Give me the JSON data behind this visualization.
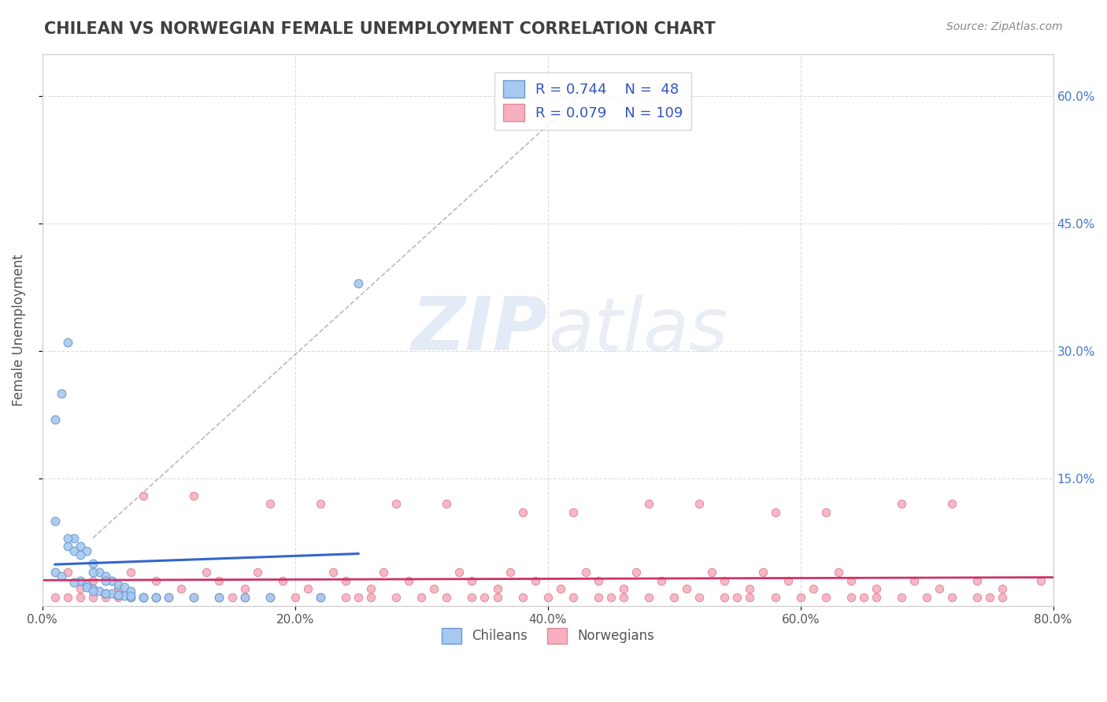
{
  "title": "CHILEAN VS NORWEGIAN FEMALE UNEMPLOYMENT CORRELATION CHART",
  "source": "Source: ZipAtlas.com",
  "ylabel": "Female Unemployment",
  "xlim": [
    0.0,
    0.8
  ],
  "ylim": [
    0.0,
    0.65
  ],
  "xtick_labels": [
    "0.0%",
    "20.0%",
    "40.0%",
    "60.0%",
    "80.0%"
  ],
  "xtick_vals": [
    0.0,
    0.2,
    0.4,
    0.6,
    0.8
  ],
  "ytick_labels": [
    "15.0%",
    "30.0%",
    "45.0%",
    "60.0%"
  ],
  "ytick_vals": [
    0.15,
    0.3,
    0.45,
    0.6
  ],
  "watermark_zip": "ZIP",
  "watermark_atlas": "atlas",
  "legend_r1": "R = 0.744",
  "legend_n1": "N =  48",
  "legend_r2": "R = 0.079",
  "legend_n2": "N = 109",
  "chile_color": "#a8c8f0",
  "chile_edge": "#6699cc",
  "norway_color": "#f8b0c0",
  "norway_edge": "#dd8899",
  "trendline_chile_color": "#3366cc",
  "trendline_norway_color": "#cc3366",
  "trendline_diag_color": "#aaaaaa",
  "background_color": "#ffffff",
  "grid_color": "#cccccc",
  "title_color": "#404040",
  "legend_text_color": "#3355bb",
  "chileans_label": "Chileans",
  "norwegians_label": "Norwegians",
  "chile_scatter_x": [
    0.01,
    0.015,
    0.02,
    0.025,
    0.03,
    0.035,
    0.04,
    0.045,
    0.05,
    0.055,
    0.06,
    0.065,
    0.07,
    0.08,
    0.09,
    0.1,
    0.12,
    0.14,
    0.16,
    0.02,
    0.025,
    0.03,
    0.035,
    0.04,
    0.045,
    0.05,
    0.055,
    0.06,
    0.065,
    0.07,
    0.01,
    0.015,
    0.025,
    0.035,
    0.04,
    0.05,
    0.06,
    0.07,
    0.08,
    0.09,
    0.01,
    0.02,
    0.03,
    0.04,
    0.05,
    0.22,
    0.18,
    0.25
  ],
  "chile_scatter_y": [
    0.22,
    0.25,
    0.07,
    0.065,
    0.03,
    0.025,
    0.02,
    0.018,
    0.015,
    0.015,
    0.013,
    0.012,
    0.01,
    0.01,
    0.01,
    0.01,
    0.01,
    0.01,
    0.01,
    0.31,
    0.08,
    0.07,
    0.065,
    0.05,
    0.04,
    0.035,
    0.03,
    0.025,
    0.022,
    0.018,
    0.04,
    0.035,
    0.028,
    0.022,
    0.018,
    0.015,
    0.013,
    0.012,
    0.01,
    0.01,
    0.1,
    0.08,
    0.06,
    0.04,
    0.03,
    0.01,
    0.01,
    0.38
  ],
  "norway_scatter_x": [
    0.01,
    0.02,
    0.03,
    0.04,
    0.05,
    0.06,
    0.07,
    0.08,
    0.09,
    0.1,
    0.12,
    0.14,
    0.16,
    0.18,
    0.2,
    0.22,
    0.24,
    0.26,
    0.28,
    0.3,
    0.32,
    0.34,
    0.36,
    0.38,
    0.4,
    0.42,
    0.44,
    0.46,
    0.48,
    0.5,
    0.52,
    0.54,
    0.56,
    0.58,
    0.6,
    0.62,
    0.64,
    0.66,
    0.68,
    0.7,
    0.72,
    0.74,
    0.76,
    0.15,
    0.25,
    0.35,
    0.45,
    0.55,
    0.65,
    0.75,
    0.08,
    0.12,
    0.18,
    0.22,
    0.28,
    0.32,
    0.38,
    0.42,
    0.48,
    0.52,
    0.58,
    0.62,
    0.68,
    0.72,
    0.03,
    0.06,
    0.11,
    0.16,
    0.21,
    0.26,
    0.31,
    0.36,
    0.41,
    0.46,
    0.51,
    0.56,
    0.61,
    0.66,
    0.71,
    0.76,
    0.04,
    0.09,
    0.14,
    0.19,
    0.24,
    0.29,
    0.34,
    0.39,
    0.44,
    0.49,
    0.54,
    0.59,
    0.64,
    0.69,
    0.74,
    0.79,
    0.02,
    0.07,
    0.13,
    0.17,
    0.23,
    0.27,
    0.33,
    0.37,
    0.43,
    0.47,
    0.53,
    0.57,
    0.63
  ],
  "norway_scatter_y": [
    0.01,
    0.01,
    0.01,
    0.01,
    0.01,
    0.01,
    0.01,
    0.01,
    0.01,
    0.01,
    0.01,
    0.01,
    0.01,
    0.01,
    0.01,
    0.01,
    0.01,
    0.01,
    0.01,
    0.01,
    0.01,
    0.01,
    0.01,
    0.01,
    0.01,
    0.01,
    0.01,
    0.01,
    0.01,
    0.01,
    0.01,
    0.01,
    0.01,
    0.01,
    0.01,
    0.01,
    0.01,
    0.01,
    0.01,
    0.01,
    0.01,
    0.01,
    0.01,
    0.01,
    0.01,
    0.01,
    0.01,
    0.01,
    0.01,
    0.01,
    0.13,
    0.13,
    0.12,
    0.12,
    0.12,
    0.12,
    0.11,
    0.11,
    0.12,
    0.12,
    0.11,
    0.11,
    0.12,
    0.12,
    0.02,
    0.02,
    0.02,
    0.02,
    0.02,
    0.02,
    0.02,
    0.02,
    0.02,
    0.02,
    0.02,
    0.02,
    0.02,
    0.02,
    0.02,
    0.02,
    0.03,
    0.03,
    0.03,
    0.03,
    0.03,
    0.03,
    0.03,
    0.03,
    0.03,
    0.03,
    0.03,
    0.03,
    0.03,
    0.03,
    0.03,
    0.03,
    0.04,
    0.04,
    0.04,
    0.04,
    0.04,
    0.04,
    0.04,
    0.04,
    0.04,
    0.04,
    0.04,
    0.04,
    0.04
  ]
}
